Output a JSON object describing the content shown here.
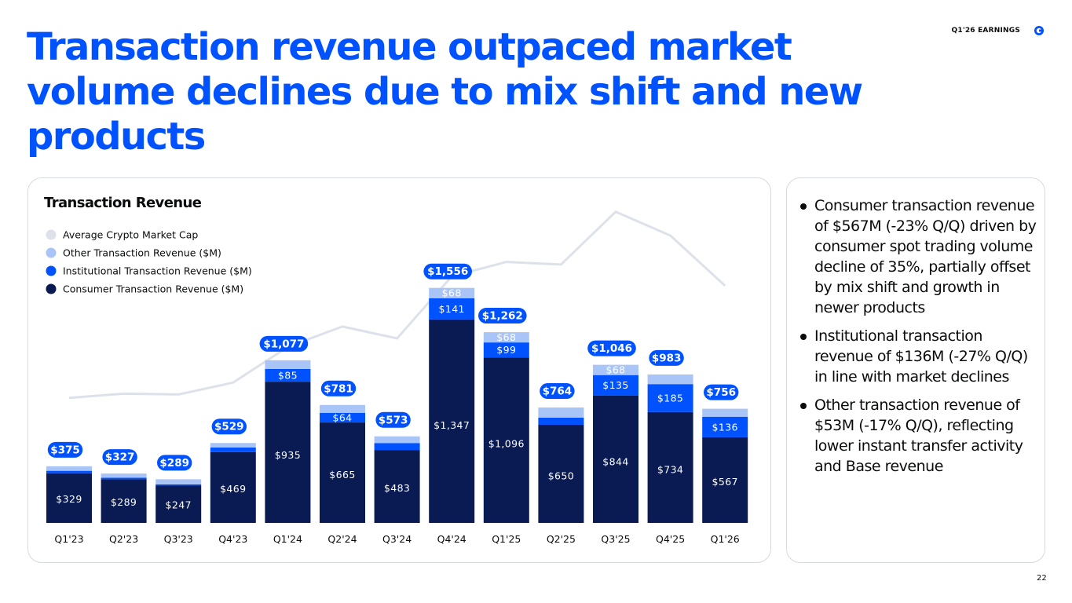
{
  "header": {
    "title": "Transaction revenue outpaced market volume declines due to mix shift and new products",
    "tag": "Q1'26 EARNINGS"
  },
  "logo": {
    "icon": "coinbase-logo-icon",
    "color": "#0052FF"
  },
  "colors": {
    "title": "#0052FF",
    "consumer": "#0A1A52",
    "institutional": "#0052FF",
    "other": "#A9C4F6",
    "market_cap_line": "#DDE2EA",
    "total_pill": "#0052FF"
  },
  "chart_data": {
    "type": "bar",
    "stacked": true,
    "title": "Transaction Revenue",
    "xlabel": "",
    "ylabel": "",
    "categories": [
      "Q1'23",
      "Q2'23",
      "Q3'23",
      "Q4'23",
      "Q1'24",
      "Q2'24",
      "Q3'24",
      "Q4'24",
      "Q1'25",
      "Q2'25",
      "Q3'25",
      "Q4'25",
      "Q1'26"
    ],
    "series": [
      {
        "name": "Consumer Transaction Revenue ($M)",
        "values": [
          329,
          289,
          247,
          469,
          935,
          665,
          483,
          1347,
          1096,
          650,
          844,
          734,
          567
        ]
      },
      {
        "name": "Institutional Transaction Revenue ($M)",
        "values": [
          16,
          10,
          8,
          30,
          85,
          64,
          46,
          141,
          99,
          47,
          135,
          185,
          136
        ]
      },
      {
        "name": "Other Transaction Revenue ($M)",
        "values": [
          30,
          28,
          34,
          30,
          57,
          52,
          44,
          68,
          68,
          67,
          68,
          64,
          53
        ]
      }
    ],
    "segment_labels": [
      [
        "$329",
        "$289",
        "$247",
        "$469",
        "$935",
        "$665",
        "$483",
        "$1,347",
        "$1,096",
        "$650",
        "$844",
        "$734",
        "$567"
      ],
      [
        "",
        "",
        "",
        "",
        "$85",
        "$64",
        "",
        "$141",
        "$99",
        "",
        "$135",
        "$185",
        "$136"
      ],
      [
        "",
        "",
        "",
        "",
        "",
        "",
        "",
        "$68",
        "$68",
        "",
        "$68",
        "",
        ""
      ]
    ],
    "totals": [
      375,
      327,
      289,
      529,
      1077,
      781,
      573,
      1556,
      1262,
      764,
      1046,
      983,
      756
    ],
    "total_labels": [
      "$375",
      "$327",
      "$289",
      "$529",
      "$1,077",
      "$781",
      "$573",
      "$1,556",
      "$1,262",
      "$764",
      "$1,046",
      "$983",
      "$756"
    ],
    "line": {
      "name": "Average Crypto Market Cap",
      "relative_values": [
        1.0,
        1.05,
        1.04,
        1.18,
        1.6,
        1.84,
        1.7,
        2.43,
        2.6,
        2.57,
        3.19,
        2.91,
        2.32
      ],
      "ylim": [
        0.0,
        3.4
      ]
    },
    "ylim": [
      0,
      1700
    ],
    "legend_order": [
      "Average Crypto Market Cap",
      "Other Transaction Revenue ($M)",
      "Institutional Transaction Revenue ($M)",
      "Consumer Transaction Revenue ($M)"
    ],
    "legend_position": "top-left",
    "grid": false
  },
  "bullets": [
    "Consumer transaction revenue of $567M (-23% Q/Q) driven by consumer spot trading volume decline of 35%, partially offset by mix shift and growth in newer products",
    "Institutional transaction revenue of $136M (-27% Q/Q) in line with market declines",
    "Other transaction revenue of $53M (-17% Q/Q), reflecting lower instant transfer activity and Base revenue"
  ],
  "page_number": "22"
}
